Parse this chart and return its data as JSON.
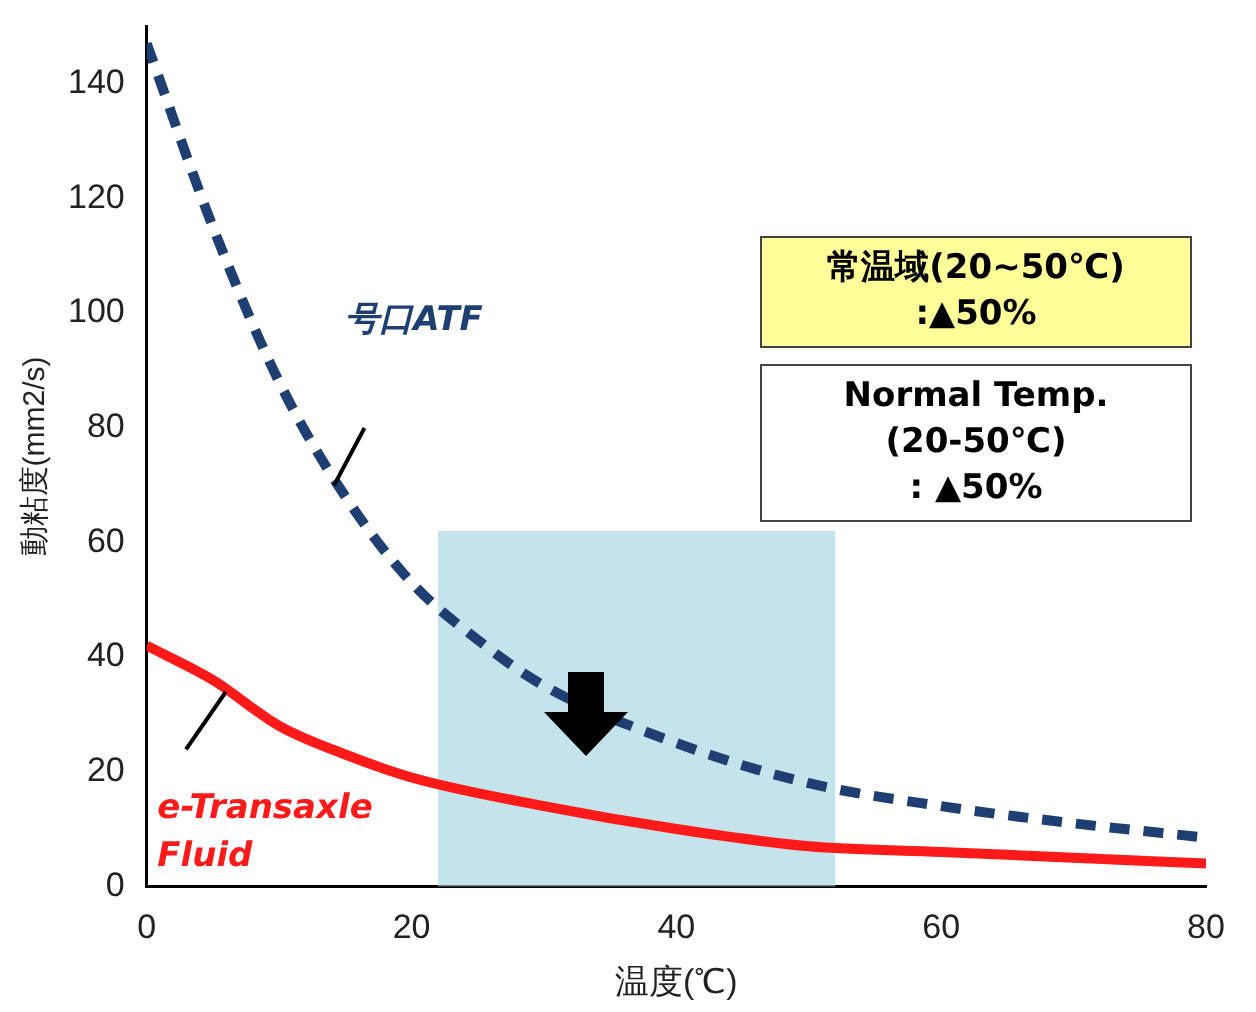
{
  "chart_data": {
    "type": "line",
    "xlabel": "温度(℃)",
    "ylabel": "動粘度(mm2/s)",
    "xlim": [
      0,
      80
    ],
    "xticks": [
      0,
      20,
      40,
      60,
      80
    ],
    "ylim": [
      0,
      150
    ],
    "yticks": [
      0,
      20,
      40,
      60,
      80,
      100,
      120,
      140
    ],
    "grid": false,
    "legend": false,
    "marker": "none",
    "series": [
      {
        "name": "号口ATF",
        "color": "#1f3f73",
        "line_style": "dashed",
        "x": [
          0,
          5,
          10,
          15,
          20,
          25,
          30,
          40,
          50,
          60,
          70,
          80
        ],
        "values": [
          147,
          115,
          88,
          68,
          53,
          43,
          35,
          25,
          18,
          14,
          11,
          8.5
        ]
      },
      {
        "name": "e-Transaxle Fluid",
        "color": "#ff1a1a",
        "line_style": "solid",
        "x": [
          0,
          5,
          10,
          15,
          20,
          30,
          40,
          50,
          60,
          70,
          80
        ],
        "values": [
          42,
          36,
          28,
          23,
          19,
          14,
          10,
          7,
          6,
          5,
          4
        ]
      }
    ],
    "bands": [
      {
        "axis": "x",
        "from": 22,
        "to": 52,
        "color": "#9fd0de"
      }
    ],
    "annotations": [
      "常温域(20~50℃)\n:▲50%",
      "Normal Temp.\n(20-50℃)\n: ▲50%"
    ]
  }
}
